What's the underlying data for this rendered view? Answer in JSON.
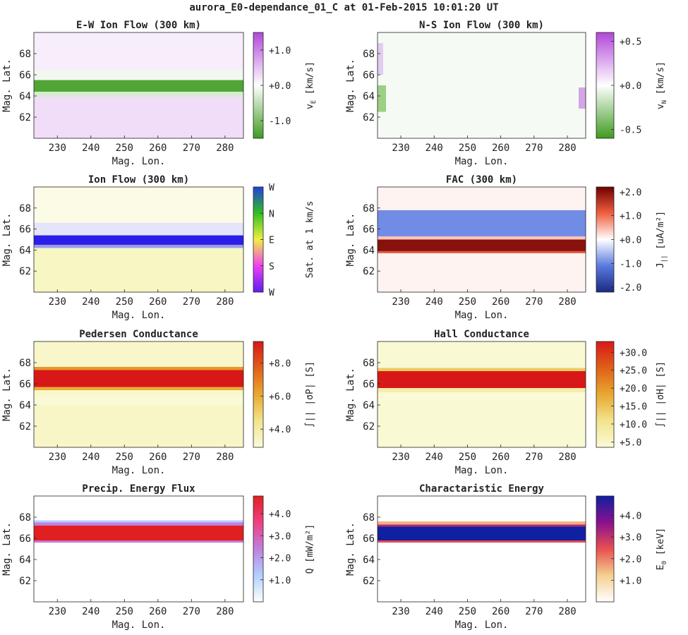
{
  "figure": {
    "title": "aurora_E0-dependance_01_C at 01-Feb-2015 10:01:20 UT"
  },
  "chart_data": [
    {
      "type": "heatmap",
      "title": "E-W Ion Flow (300 km)",
      "xlabel": "Mag. Lon.",
      "ylabel": "Mag. Lat.",
      "x_ticks": [
        "230",
        "240",
        "250",
        "260",
        "270",
        "280"
      ],
      "y_ticks": [
        "62",
        "64",
        "66",
        "68"
      ],
      "xlim": [
        223,
        285.5
      ],
      "ylim": [
        60,
        70
      ],
      "colorbar": {
        "label_main": "v",
        "label_sub": "E",
        "label_rest": " [km/s]",
        "ticks": [
          "-1.0",
          "+0.0",
          "+1.0"
        ],
        "tick_values": [
          -1,
          0,
          1
        ],
        "range": [
          -1.5,
          1.5
        ],
        "colors": [
          "#3d9b1e",
          "#ffffff",
          "#b247d9"
        ]
      },
      "bands": [
        {
          "y": [
            60,
            63.9
          ],
          "value": 0.28
        },
        {
          "y": [
            63.9,
            64.4
          ],
          "value": -0.3
        },
        {
          "y": [
            64.4,
            65.5
          ],
          "value": -1.35
        },
        {
          "y": [
            65.5,
            66.5
          ],
          "value": -0.1
        },
        {
          "y": [
            66.5,
            70
          ],
          "value": 0.15
        }
      ]
    },
    {
      "type": "heatmap",
      "title": "N-S Ion Flow (300 km)",
      "xlabel": "Mag. Lon.",
      "ylabel": "Mag. Lat.",
      "x_ticks": [
        "230",
        "240",
        "250",
        "260",
        "270",
        "280"
      ],
      "y_ticks": [
        "62",
        "64",
        "66",
        "68"
      ],
      "xlim": [
        223,
        285.5
      ],
      "ylim": [
        60,
        70
      ],
      "colorbar": {
        "label_main": "v",
        "label_sub": "N",
        "label_rest": " [km/s]",
        "ticks": [
          "-0.5",
          "+0.0",
          "+0.5"
        ],
        "tick_values": [
          -0.5,
          0,
          0.5
        ],
        "range": [
          -0.6,
          0.6
        ],
        "colors": [
          "#3d9b1e",
          "#ffffff",
          "#b247d9"
        ]
      },
      "bands": [
        {
          "y": [
            60,
            70
          ],
          "value": -0.03
        }
      ]
    },
    {
      "type": "heatmap",
      "title": "Ion Flow (300 km)",
      "xlabel": "Mag. Lon.",
      "ylabel": "Mag. Lat.",
      "x_ticks": [
        "230",
        "240",
        "250",
        "260",
        "270",
        "280"
      ],
      "y_ticks": [
        "62",
        "64",
        "66",
        "68"
      ],
      "xlim": [
        223,
        285.5
      ],
      "ylim": [
        60,
        70
      ],
      "colorbar": {
        "label_main": "Sat. at 1 km/s",
        "label_sub": "",
        "label_rest": "",
        "ticks": [
          "W",
          "S",
          "E",
          "N",
          "W"
        ],
        "tick_values": [
          0,
          0.25,
          0.5,
          0.75,
          1
        ],
        "range": [
          0,
          1
        ],
        "colors": [
          "#5a20f0",
          "#f040f0",
          "#f0f040",
          "#30c020",
          "#2040e0"
        ]
      },
      "bands": [
        {
          "y": [
            60,
            64.2
          ],
          "color": "#f7f7c4"
        },
        {
          "y": [
            64.2,
            64.5
          ],
          "color": "#9a9af0"
        },
        {
          "y": [
            64.5,
            65.4
          ],
          "color": "#2a1ee8"
        },
        {
          "y": [
            65.4,
            66.6
          ],
          "color": "#e4e4fb"
        },
        {
          "y": [
            66.6,
            70
          ],
          "color": "#fbfbe6"
        }
      ]
    },
    {
      "type": "heatmap",
      "title": "FAC (300 km)",
      "xlabel": "Mag. Lon.",
      "ylabel": "Mag. Lat.",
      "x_ticks": [
        "230",
        "240",
        "250",
        "260",
        "270",
        "280"
      ],
      "y_ticks": [
        "62",
        "64",
        "66",
        "68"
      ],
      "xlim": [
        223,
        285.5
      ],
      "ylim": [
        60,
        70
      ],
      "colorbar": {
        "label_main": "J",
        "label_sub": "||",
        "label_rest": " [uA/m²]",
        "ticks": [
          "-2.0",
          "-1.0",
          "+0.0",
          "+1.0",
          "+2.0"
        ],
        "tick_values": [
          -2,
          -1,
          0,
          1,
          2
        ],
        "range": [
          -2.2,
          2.2
        ],
        "colors": [
          "#1a2a80",
          "#5a7ae0",
          "#ffffff",
          "#f06040",
          "#700000"
        ]
      },
      "bands": [
        {
          "y": [
            60,
            63.7
          ],
          "value": 0.08
        },
        {
          "y": [
            63.7,
            63.9
          ],
          "value": 1.2
        },
        {
          "y": [
            63.9,
            65.0
          ],
          "value": 2.0
        },
        {
          "y": [
            65.0,
            65.3
          ],
          "value": 0.4
        },
        {
          "y": [
            65.3,
            67.8
          ],
          "value": -0.95
        },
        {
          "y": [
            67.8,
            70
          ],
          "value": 0.08
        }
      ]
    },
    {
      "type": "heatmap",
      "title": "Pedersen Conductance",
      "xlabel": "Mag. Lon.",
      "ylabel": "Mag. Lat.",
      "x_ticks": [
        "230",
        "240",
        "250",
        "260",
        "270",
        "280"
      ],
      "y_ticks": [
        "62",
        "64",
        "66",
        "68"
      ],
      "xlim": [
        223,
        285.5
      ],
      "ylim": [
        60,
        70
      ],
      "colorbar": {
        "label_main": "∫|| |σP| [S]",
        "label_sub": "",
        "label_rest": "",
        "ticks": [
          "+4.0",
          "+6.0",
          "+8.0"
        ],
        "tick_values": [
          4,
          6,
          8
        ],
        "range": [
          2.9,
          9.3
        ],
        "colors": [
          "#fafad8",
          "#f2e48c",
          "#e8a830",
          "#e06018",
          "#d81818"
        ]
      },
      "bands": [
        {
          "y": [
            60,
            64.0
          ],
          "value": 3.25
        },
        {
          "y": [
            64.0,
            64.9
          ],
          "value": 2.95
        },
        {
          "y": [
            64.9,
            65.4
          ],
          "value": 3.2
        },
        {
          "y": [
            65.4,
            65.7
          ],
          "value": 6.0
        },
        {
          "y": [
            65.7,
            67.3
          ],
          "value": 9.3
        },
        {
          "y": [
            67.3,
            67.6
          ],
          "value": 6.5
        },
        {
          "y": [
            67.6,
            70
          ],
          "value": 3.2
        }
      ]
    },
    {
      "type": "heatmap",
      "title": "Hall Conductance",
      "xlabel": "Mag. Lon.",
      "ylabel": "Mag. Lat.",
      "x_ticks": [
        "230",
        "240",
        "250",
        "260",
        "270",
        "280"
      ],
      "y_ticks": [
        "62",
        "64",
        "66",
        "68"
      ],
      "xlim": [
        223,
        285.5
      ],
      "ylim": [
        60,
        70
      ],
      "colorbar": {
        "label_main": "∫|| |σH| [S]",
        "label_sub": "",
        "label_rest": "",
        "ticks": [
          "+5.0",
          "+10.0",
          "+15.0",
          "+20.0",
          "+25.0",
          "+30.0"
        ],
        "tick_values": [
          5,
          10,
          15,
          20,
          25,
          30
        ],
        "range": [
          3.5,
          33
        ],
        "colors": [
          "#fafad8",
          "#f2e48c",
          "#e8a830",
          "#e06018",
          "#d81818"
        ]
      },
      "bands": [
        {
          "y": [
            60,
            64.4
          ],
          "value": 4.0
        },
        {
          "y": [
            64.4,
            65.2
          ],
          "value": 3.5
        },
        {
          "y": [
            65.2,
            65.6
          ],
          "value": 8.0
        },
        {
          "y": [
            65.6,
            67.2
          ],
          "value": 33
        },
        {
          "y": [
            67.2,
            67.5
          ],
          "value": 14
        },
        {
          "y": [
            67.5,
            70
          ],
          "value": 4.0
        }
      ]
    },
    {
      "type": "heatmap",
      "title": "Precip. Energy Flux",
      "xlabel": "Mag. Lon.",
      "ylabel": "Mag. Lat.",
      "x_ticks": [
        "230",
        "240",
        "250",
        "260",
        "270",
        "280"
      ],
      "y_ticks": [
        "62",
        "64",
        "66",
        "68"
      ],
      "xlim": [
        223,
        285.5
      ],
      "ylim": [
        60,
        70
      ],
      "colorbar": {
        "label_main": "Q [mW/m²]",
        "label_sub": "",
        "label_rest": "",
        "ticks": [
          "+1.0",
          "+2.0",
          "+3.0",
          "+4.0"
        ],
        "tick_values": [
          1,
          2,
          3,
          4
        ],
        "range": [
          0,
          4.8
        ],
        "colors": [
          "#ffffff",
          "#b0d0ff",
          "#c080e0",
          "#f04080",
          "#e02020"
        ]
      },
      "bands": [
        {
          "y": [
            60,
            65.6
          ],
          "value": 0.0
        },
        {
          "y": [
            65.6,
            65.8
          ],
          "value": 2.6
        },
        {
          "y": [
            65.8,
            67.2
          ],
          "value": 4.8
        },
        {
          "y": [
            67.2,
            67.5
          ],
          "value": 2.4
        },
        {
          "y": [
            67.5,
            67.7
          ],
          "value": 1.2
        },
        {
          "y": [
            67.7,
            70
          ],
          "value": 0.0
        }
      ]
    },
    {
      "type": "heatmap",
      "title": "Charactaristic Energy",
      "xlabel": "Mag. Lon.",
      "ylabel": "Mag. Lat.",
      "x_ticks": [
        "230",
        "240",
        "250",
        "260",
        "270",
        "280"
      ],
      "y_ticks": [
        "62",
        "64",
        "66",
        "68"
      ],
      "xlim": [
        223,
        285.5
      ],
      "ylim": [
        60,
        70
      ],
      "colorbar": {
        "label_main": "E",
        "label_sub": "0",
        "label_rest": " [keV]",
        "ticks": [
          "+1.0",
          "+2.0",
          "+3.0",
          "+4.0"
        ],
        "tick_values": [
          1,
          2,
          3,
          4
        ],
        "range": [
          0,
          4.9
        ],
        "colors": [
          "#ffffff",
          "#f4d090",
          "#e85050",
          "#8a1090",
          "#1020a0"
        ]
      },
      "bands": [
        {
          "y": [
            60,
            65.6
          ],
          "value": 0.0
        },
        {
          "y": [
            65.6,
            65.8
          ],
          "value": 2.5
        },
        {
          "y": [
            65.8,
            67.1
          ],
          "value": 4.9
        },
        {
          "y": [
            67.1,
            67.3
          ],
          "value": 3.2
        },
        {
          "y": [
            67.3,
            67.6
          ],
          "value": 1.5
        },
        {
          "y": [
            67.6,
            70
          ],
          "value": 0.0
        }
      ]
    }
  ]
}
